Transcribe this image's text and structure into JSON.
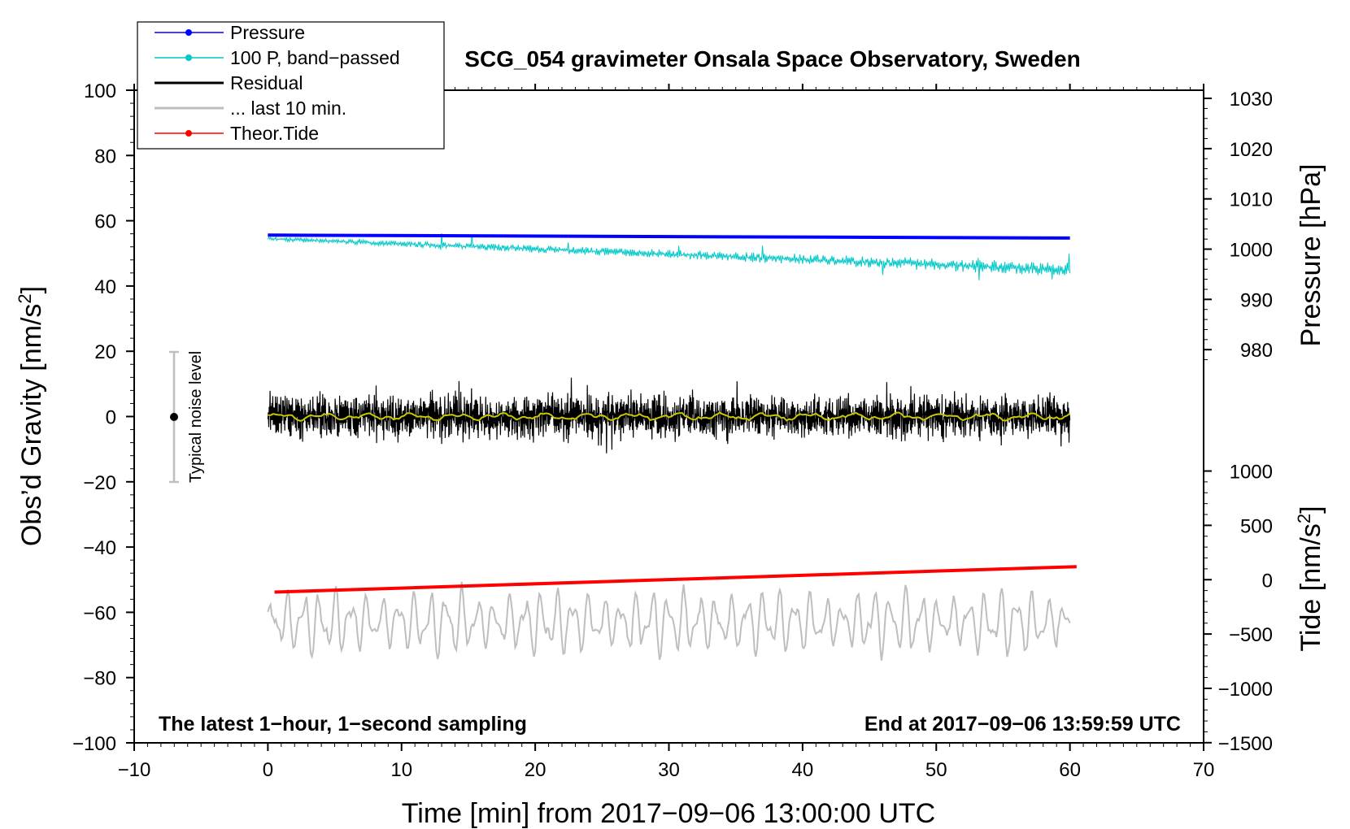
{
  "chart_data": {
    "type": "line",
    "title": "SCG_054 gravimeter Onsala Space Observatory, Sweden",
    "xlabel": "Time [min] from 2017−09−06 13:00:00 UTC",
    "ylabel_left": "Obs’d Gravity [nm/s",
    "ylabel_left_sup": "2",
    "ylabel_left_end": "]",
    "ylabel_right_pressure": "Pressure [hPa]",
    "ylabel_right_tide": "Tide [nm/s",
    "ylabel_right_tide_sup": "2",
    "ylabel_right_tide_end": "]",
    "xlim": [
      -10,
      70
    ],
    "ylim_left": [
      -100,
      100
    ],
    "x_ticks": [
      -10,
      0,
      10,
      20,
      30,
      40,
      50,
      60,
      70
    ],
    "x_tick_labels": [
      "−10",
      "0",
      "10",
      "20",
      "30",
      "40",
      "50",
      "60",
      "70"
    ],
    "y_left_ticks": [
      -100,
      -80,
      -60,
      -40,
      -20,
      0,
      20,
      40,
      60,
      80,
      100
    ],
    "y_left_tick_labels": [
      "−100",
      "−80",
      "−60",
      "−40",
      "−20",
      "0",
      "20",
      "40",
      "60",
      "80",
      "100"
    ],
    "pressure_axis": {
      "ticks": [
        980,
        990,
        1000,
        1010,
        1020,
        1030
      ],
      "tick_labels": [
        "980",
        "990",
        "1000",
        "1010",
        "1020",
        "1030"
      ],
      "gravity_at_980": 20.5,
      "gravity_per_hpa": 1.54
    },
    "tide_axis": {
      "ticks": [
        -1500,
        -1000,
        -500,
        0,
        500,
        1000
      ],
      "tick_labels": [
        "−1500",
        "−1000",
        "−500",
        "0",
        "500",
        "1000"
      ],
      "gravity_at_0": -50.0,
      "gravity_per_unit": 0.0333
    },
    "legend": [
      {
        "label": "Pressure",
        "color": "#0000ff",
        "marker": true
      },
      {
        "label": "100 P, band−passed",
        "color": "#00c8c8",
        "marker": true
      },
      {
        "label": "Residual",
        "color": "#000000",
        "marker": false
      },
      {
        "label": "... last 10 min.",
        "color": "#bebebe",
        "marker": false
      },
      {
        "label": "Theor.Tide",
        "color": "#ff0000",
        "marker": true
      }
    ],
    "series": [
      {
        "name": "Pressure",
        "color": "#0000ff",
        "x_range": [
          0,
          60
        ],
        "y_start": 55.6,
        "y_end": 54.7
      },
      {
        "name": "100 P, band−passed",
        "color": "#00c8c8",
        "x_range": [
          0,
          60
        ],
        "y_start": 54.5,
        "y_end": 45.0
      },
      {
        "name": "Residual",
        "color": "#000000",
        "x_range": [
          0,
          60
        ],
        "y_center": 0,
        "typical_amplitude": 8
      },
      {
        "name": "Residual smoothed",
        "color": "#c8c800",
        "x_range": [
          0,
          60
        ],
        "y_center": 0
      },
      {
        "name": "... last 10 min.",
        "color": "#bebebe",
        "x_range": [
          0,
          60
        ],
        "y_center": -63,
        "typical_amplitude": 7
      },
      {
        "name": "Theor.Tide",
        "color": "#ff0000",
        "x_range": [
          0.5,
          60.5
        ],
        "y_start": -53.8,
        "y_end": -46.0
      }
    ],
    "noise_level": {
      "label": "Typical noise level",
      "x": -7,
      "y": 0,
      "range": [
        -20,
        20
      ]
    },
    "annotations": {
      "left": "The latest 1−hour, 1−second sampling",
      "right": "End at 2017−09−06 13:59:59 UTC"
    }
  }
}
